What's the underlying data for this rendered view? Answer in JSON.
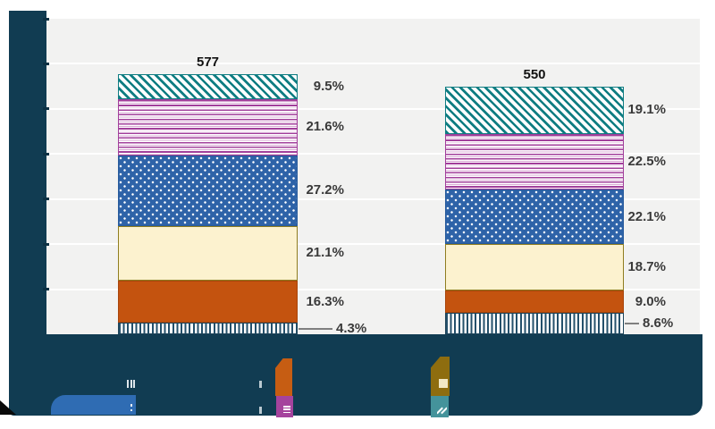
{
  "chart_data": {
    "type": "stacked-bar",
    "title": "",
    "xlabel": "",
    "ylabel": "",
    "plot_background": "#f2f2f1",
    "grid": "horizontal, 7 intervals, white lines",
    "ylim_estimated": [
      0,
      700
    ],
    "y_axis_labels": "redacted (covered by navy overlay)",
    "legend_text": "redacted (covered by navy overlay)",
    "bars": [
      {
        "total": 577,
        "total_label": "577",
        "segments_bottom_to_top": [
          {
            "pattern": "vertical-stripes-navy",
            "color": "#24506b",
            "pct": 4.3,
            "label": "4.3%",
            "leader": true
          },
          {
            "pattern": "solid-orange",
            "color": "#c4530f",
            "pct": 16.3,
            "label": "16.3%"
          },
          {
            "pattern": "solid-cream",
            "color": "#fcf2cf",
            "pct": 21.1,
            "label": "21.1%"
          },
          {
            "pattern": "white-dots-on-blue",
            "color": "#2e63a8",
            "pct": 27.2,
            "label": "27.2%"
          },
          {
            "pattern": "horizontal-lines-purple",
            "color": "#a23f9b",
            "pct": 21.6,
            "label": "21.6%"
          },
          {
            "pattern": "diagonal-hatch-teal",
            "color": "#0f7d82",
            "pct": 9.5,
            "label": "9.5%"
          }
        ]
      },
      {
        "total": 550,
        "total_label": "550",
        "segments_bottom_to_top": [
          {
            "pattern": "vertical-stripes-navy",
            "color": "#24506b",
            "pct": 8.6,
            "label": "8.6%",
            "leader": true
          },
          {
            "pattern": "solid-orange",
            "color": "#c4530f",
            "pct": 9.0,
            "label": "9.0%"
          },
          {
            "pattern": "solid-cream",
            "color": "#fcf2cf",
            "pct": 18.7,
            "label": "18.7%"
          },
          {
            "pattern": "white-dots-on-blue",
            "color": "#2e63a8",
            "pct": 22.1,
            "label": "22.1%"
          },
          {
            "pattern": "horizontal-lines-purple",
            "color": "#a23f9b",
            "pct": 22.5,
            "label": "22.5%"
          },
          {
            "pattern": "diagonal-hatch-teal",
            "color": "#0f7d82",
            "pct": 19.1,
            "label": "19.1%"
          }
        ]
      }
    ]
  },
  "redaction": {
    "overlay_color": "#113c52",
    "corner_wedge_color": "#0a0a0a",
    "legend_fragments": {
      "blue_rounded_shape": "#2f6cb3",
      "orange_swatch": "#c65d13",
      "purple_swatch": "#a5439d",
      "dark_yellow_swatch": "#8e6d0f",
      "dark_yellow_inner_square": "#f2e8c5",
      "teal_swatch": "#44939b",
      "white_glyphs": [
        "vertical-bars-icon",
        "dots-icon",
        "horizontal-lines-icon",
        "diagonal-lines-icon"
      ]
    }
  }
}
